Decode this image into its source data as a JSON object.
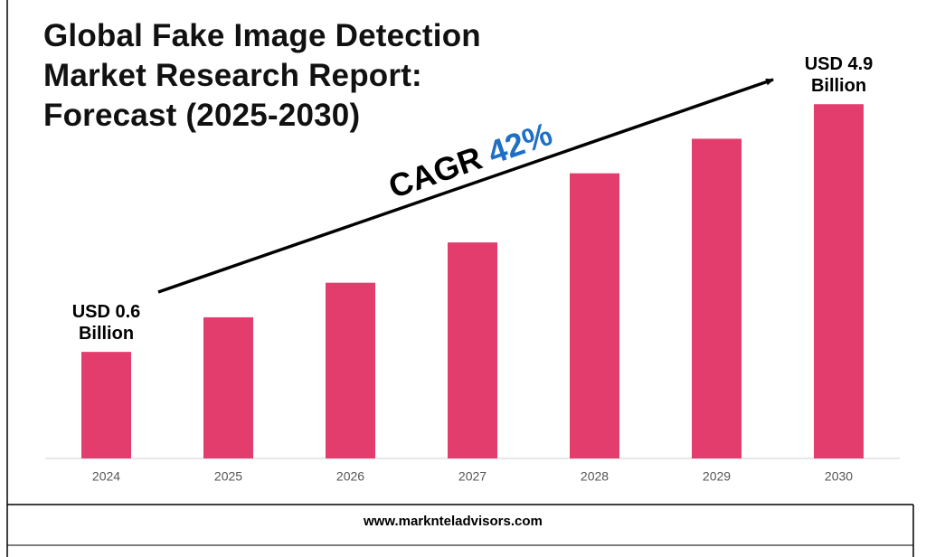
{
  "chart_data": {
    "type": "bar",
    "title": "Global Fake Image Detection Market Research Report: Forecast (2025-2030)",
    "categories": [
      "2024",
      "2025",
      "2026",
      "2027",
      "2028",
      "2029",
      "2030"
    ],
    "values": [
      0.6,
      1.2,
      1.8,
      2.5,
      3.7,
      4.3,
      4.9
    ],
    "value_labels": [
      "USD 0.6 Billion",
      null,
      null,
      null,
      null,
      null,
      "USD 4.9 Billion"
    ],
    "color": "#e23d6d",
    "ylim": [
      -1.25,
      5.5
    ],
    "annotation_label": "CAGR",
    "annotation_value": "42%",
    "annotation_value_color": "#1f6fc5"
  },
  "footer": "www.marknteladvisors.com"
}
